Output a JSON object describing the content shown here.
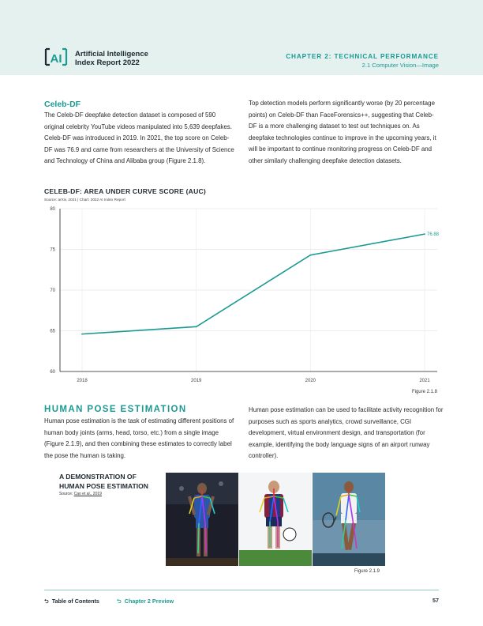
{
  "header": {
    "brand_line1": "Artificial Intelligence",
    "brand_line2": "Index Report 2022",
    "logo_text": "AI",
    "chapter": "CHAPTER 2: TECHNICAL PERFORMANCE",
    "section": "2.1 Computer Vision—Image"
  },
  "celeb": {
    "heading": "Celeb-DF",
    "left_para": "The Celeb-DF deepfake detection dataset is composed of 590 original celebrity YouTube videos manipulated into 5,639 deepfakes. Celeb-DF was introduced in 2019. In 2021, the top score on Celeb-DF was 76.9 and came from researchers at the University of Science and Technology of China and Alibaba group (Figure 2.1.8).",
    "right_para": "Top detection models perform significantly worse (by 20 percentage points) on Celeb-DF than FaceForensics++, suggesting that Celeb-DF is a more challenging dataset to test out techniques on. As deepfake technologies continue to improve in the upcoming years, it will be important to continue monitoring progress on Celeb-DF and other similarly challenging deepfake detection datasets."
  },
  "chart_data": {
    "type": "line",
    "title": "CELEB-DF: AREA UNDER CURVE SCORE (AUC)",
    "source": "Source: arXiv, 2021 | Chart: 2022 AI Index Report",
    "ylabel": "Area Under Curve Score (AUC)",
    "xlabel": "",
    "x": [
      "2018",
      "2019",
      "2020",
      "2021"
    ],
    "values": [
      64.6,
      65.5,
      74.3,
      76.88
    ],
    "end_label": "76.88",
    "ylim": [
      60,
      80
    ],
    "yticks": [
      "60",
      "65",
      "70",
      "75",
      "80"
    ],
    "grid": true,
    "line_color": "#1b9a93",
    "figure": "Figure 2.1.8"
  },
  "pose": {
    "heading": "HUMAN POSE ESTIMATION",
    "left_para": "Human pose estimation is the task of estimating different positions of human body joints (arms, head, torso, etc.) from a single image (Figure 2.1.9), and then combining these estimates to correctly label the pose the human is taking.",
    "right_para": "Human pose estimation can be used to facilitate activity recognition for purposes such as sports analytics, crowd surveillance, CGI development, virtual environment design, and transportation (for example, identifying the body language signs of an airport runway controller).",
    "demo_title_1": "A DEMONSTRATION OF",
    "demo_title_2": "HUMAN POSE ESTIMATION",
    "demo_source_prefix": "Source: ",
    "demo_source_link": "Cao et al., 2019",
    "figure": "Figure 2.1.9"
  },
  "footer": {
    "toc": "Table of Contents",
    "preview": "Chapter 2 Preview",
    "page": "57",
    "accent": "#1b9a93"
  }
}
